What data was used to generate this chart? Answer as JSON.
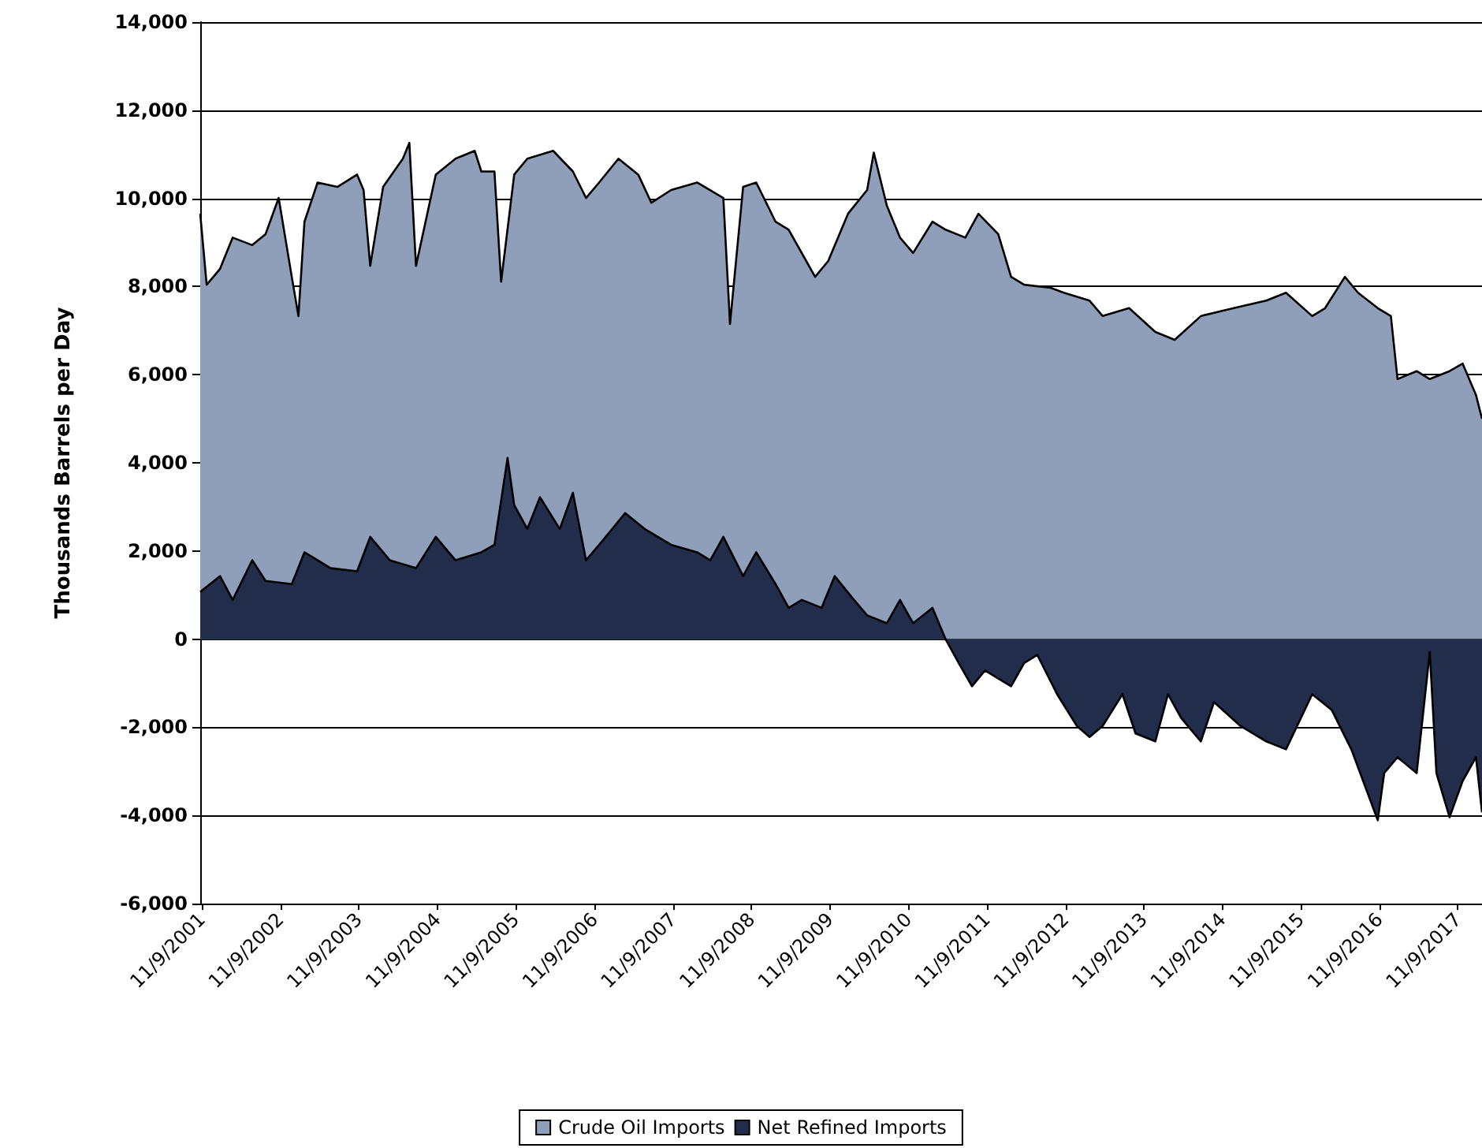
{
  "chart_data": {
    "type": "area",
    "ylabel": "Thousands Barrels per Day",
    "xlim": [
      "2001-11",
      "2018-03"
    ],
    "xticks": [
      {
        "value": "2001-11-09",
        "label": "11/9/2001"
      },
      {
        "value": "2002-11-09",
        "label": "11/9/2002"
      },
      {
        "value": "2003-11-09",
        "label": "11/9/2003"
      },
      {
        "value": "2004-11-09",
        "label": "11/9/2004"
      },
      {
        "value": "2005-11-09",
        "label": "11/9/2005"
      },
      {
        "value": "2006-11-09",
        "label": "11/9/2006"
      },
      {
        "value": "2007-11-09",
        "label": "11/9/2007"
      },
      {
        "value": "2008-11-09",
        "label": "11/9/2008"
      },
      {
        "value": "2009-11-09",
        "label": "11/9/2009"
      },
      {
        "value": "2010-11-09",
        "label": "11/9/2010"
      },
      {
        "value": "2011-11-09",
        "label": "11/9/2011"
      },
      {
        "value": "2012-11-09",
        "label": "11/9/2012"
      },
      {
        "value": "2013-11-09",
        "label": "11/9/2013"
      },
      {
        "value": "2014-11-09",
        "label": "11/9/2014"
      },
      {
        "value": "2015-11-09",
        "label": "11/9/2015"
      },
      {
        "value": "2016-11-09",
        "label": "11/9/2016"
      },
      {
        "value": "2017-11-09",
        "label": "11/9/2017"
      }
    ],
    "ylim": [
      -6000,
      14000
    ],
    "yticks": [
      {
        "value": -6000,
        "label": "-6,000"
      },
      {
        "value": -4000,
        "label": "-4,000"
      },
      {
        "value": -2000,
        "label": "-2,000"
      },
      0,
      {
        "value": 2000,
        "label": "2,000"
      },
      {
        "value": 4000,
        "label": "4,000"
      },
      {
        "value": 6000,
        "label": "6,000"
      },
      {
        "value": 8000,
        "label": "8,000"
      },
      {
        "value": 10000,
        "label": "10,000"
      },
      {
        "value": 12000,
        "label": "12,000"
      },
      {
        "value": 14000,
        "label": "14,000"
      }
    ],
    "grid": "y",
    "legend": "bottom",
    "marker": "none",
    "line_style": "solid",
    "series": [
      {
        "name": "Crude Oil Imports",
        "color": "#8f9fba",
        "x": [
          "2001-11",
          "2001-12",
          "2002-02",
          "2002-04",
          "2002-07",
          "2002-09",
          "2002-11",
          "2003-01",
          "2003-02",
          "2003-03",
          "2003-05",
          "2003-08",
          "2003-11",
          "2003-12",
          "2004-01",
          "2004-03",
          "2004-06",
          "2004-07",
          "2004-08",
          "2004-11",
          "2005-02",
          "2005-05",
          "2005-06",
          "2005-08",
          "2005-09",
          "2005-11",
          "2006-01",
          "2006-05",
          "2006-08",
          "2006-10",
          "2006-12",
          "2007-03",
          "2007-06",
          "2007-08",
          "2007-11",
          "2008-03",
          "2008-07",
          "2008-08",
          "2008-10",
          "2008-12",
          "2009-03",
          "2009-05",
          "2009-09",
          "2009-11",
          "2010-02",
          "2010-05",
          "2010-06",
          "2010-08",
          "2010-10",
          "2010-12",
          "2011-03",
          "2011-05",
          "2011-08",
          "2011-10",
          "2012-01",
          "2012-03",
          "2012-05",
          "2012-09",
          "2012-11",
          "2013-03",
          "2013-05",
          "2013-09",
          "2014-01",
          "2014-04",
          "2014-08",
          "2015-01",
          "2015-06",
          "2015-09",
          "2016-01",
          "2016-03",
          "2016-06",
          "2016-08",
          "2016-11",
          "2017-01",
          "2017-02",
          "2017-05",
          "2017-07",
          "2017-10",
          "2017-12",
          "2018-02",
          "2018-03"
        ],
        "values": [
          9650,
          8040,
          8400,
          9110,
          8940,
          9190,
          10010,
          8220,
          7330,
          9470,
          10360,
          10260,
          10540,
          10190,
          8470,
          10260,
          10900,
          11260,
          8470,
          10540,
          10900,
          11080,
          10610,
          10610,
          8110,
          10540,
          10900,
          11080,
          10610,
          10010,
          10360,
          10900,
          10540,
          9900,
          10190,
          10360,
          10010,
          7150,
          10260,
          10360,
          9470,
          9290,
          8220,
          8580,
          9650,
          10190,
          11040,
          9830,
          9110,
          8760,
          9470,
          9290,
          9110,
          9650,
          9190,
          8220,
          8040,
          7970,
          7860,
          7680,
          7330,
          7510,
          6970,
          6790,
          7330,
          7510,
          7680,
          7860,
          7330,
          7510,
          8220,
          7860,
          7510,
          7330,
          5900,
          6080,
          5900,
          6080,
          6250,
          5540,
          5000
        ]
      },
      {
        "name": "Net Refined Imports",
        "color": "#212d4a",
        "x": [
          "2001-11",
          "2002-02",
          "2002-04",
          "2002-07",
          "2002-09",
          "2003-01",
          "2003-03",
          "2003-07",
          "2003-11",
          "2004-01",
          "2004-04",
          "2004-08",
          "2004-11",
          "2005-02",
          "2005-06",
          "2005-08",
          "2005-10",
          "2005-11",
          "2006-01",
          "2006-03",
          "2006-06",
          "2006-08",
          "2006-10",
          "2007-01",
          "2007-04",
          "2007-07",
          "2007-11",
          "2008-03",
          "2008-05",
          "2008-07",
          "2008-10",
          "2008-12",
          "2009-03",
          "2009-05",
          "2009-07",
          "2009-10",
          "2009-12",
          "2010-03",
          "2010-05",
          "2010-08",
          "2010-10",
          "2010-12",
          "2011-03",
          "2011-05",
          "2011-07",
          "2011-09",
          "2011-11",
          "2012-03",
          "2012-05",
          "2012-07",
          "2012-10",
          "2013-01",
          "2013-03",
          "2013-05",
          "2013-08",
          "2013-10",
          "2014-01",
          "2014-03",
          "2014-05",
          "2014-08",
          "2014-10",
          "2015-02",
          "2015-06",
          "2015-09",
          "2016-01",
          "2016-04",
          "2016-07",
          "2016-11",
          "2016-12",
          "2017-02",
          "2017-05",
          "2017-07",
          "2017-08",
          "2017-10",
          "2017-12",
          "2018-02",
          "2018-03"
        ],
        "values": [
          1070,
          1430,
          890,
          1790,
          1320,
          1250,
          1970,
          1610,
          1540,
          2320,
          1790,
          1610,
          2320,
          1790,
          1970,
          2140,
          4110,
          3040,
          2500,
          3220,
          2500,
          3320,
          1790,
          2320,
          2860,
          2500,
          2140,
          1970,
          1790,
          2320,
          1430,
          1970,
          1250,
          710,
          890,
          710,
          1430,
          890,
          540,
          360,
          890,
          360,
          710,
          0,
          -540,
          -1070,
          -710,
          -1070,
          -540,
          -360,
          -1250,
          -1970,
          -2220,
          -1970,
          -1250,
          -2140,
          -2320,
          -1250,
          -1790,
          -2320,
          -1430,
          -1970,
          -2320,
          -2500,
          -1250,
          -1610,
          -2500,
          -4110,
          -3040,
          -2680,
          -3040,
          -290,
          -3040,
          -4040,
          -3220,
          -2680,
          -3930
        ]
      }
    ]
  }
}
